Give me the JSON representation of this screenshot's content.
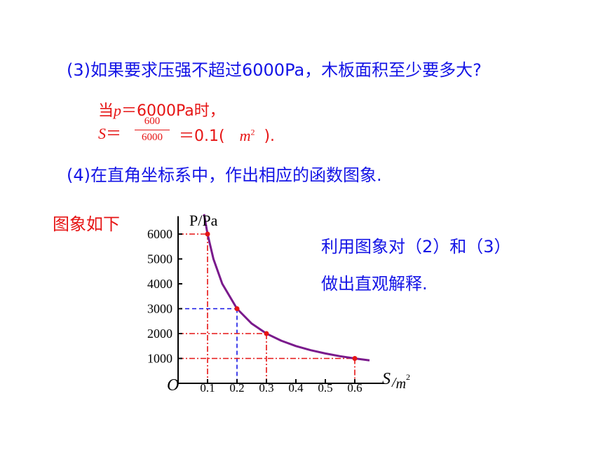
{
  "question3": "(3)如果要求压强不超过6000Pa，木板面积至少要多大?",
  "answer": {
    "line1_prefix": "当",
    "line1_var": "p",
    "line1_rest": "＝6000Pa时，",
    "line2_var": "S",
    "line2_eq": "＝",
    "numerator": "600",
    "denominator": "6000",
    "result": "＝0.1(",
    "unit": "m",
    "unit_exp": "2",
    "close": ")."
  },
  "question4": "(4)在直角坐标系中，作出相应的函数图象.",
  "graph_caption": "图象如下",
  "note_line1": "利用图象对（2）和（3）",
  "note_line2": "做出直观解释.",
  "colors": {
    "blue": "#1414e6",
    "red": "#e61414",
    "curve": "#7a1a8c"
  },
  "chart_data": {
    "type": "line",
    "ylabel": "P/Pa",
    "xlabel_var": "S",
    "xlabel_unit": "m",
    "xlabel_exp": "2",
    "origin_label": "O",
    "xlim": [
      0,
      0.7
    ],
    "ylim": [
      0,
      7000
    ],
    "y_ticks": [
      1000,
      2000,
      3000,
      4000,
      5000,
      6000
    ],
    "x_ticks": [
      0.1,
      0.2,
      0.3,
      0.4,
      0.5,
      0.6
    ],
    "x_tick_labels": [
      "0.1",
      "0.2",
      "0.3",
      "0.4",
      "0.5",
      "0.6"
    ],
    "y_tick_labels": [
      "1000",
      "2000",
      "3000",
      "4000",
      "5000",
      "6000"
    ],
    "curve": {
      "s": [
        0.088,
        0.1,
        0.12,
        0.15,
        0.2,
        0.25,
        0.3,
        0.35,
        0.4,
        0.45,
        0.5,
        0.55,
        0.6,
        0.65
      ],
      "p": [
        6800,
        6000,
        5000,
        4000,
        3000,
        2400,
        2000,
        1715,
        1500,
        1333,
        1200,
        1090,
        1000,
        923
      ]
    },
    "points": [
      {
        "s": 0.1,
        "p": 6000,
        "color": "red"
      },
      {
        "s": 0.2,
        "p": 3000,
        "color": "red"
      },
      {
        "s": 0.3,
        "p": 2000,
        "color": "red"
      },
      {
        "s": 0.6,
        "p": 1000,
        "color": "red"
      }
    ],
    "guides": [
      {
        "s": 0.1,
        "p": 6000,
        "color": "red"
      },
      {
        "s": 0.2,
        "p": 3000,
        "color": "blue"
      },
      {
        "s": 0.3,
        "p": 2000,
        "color": "red"
      },
      {
        "s": 0.6,
        "p": 1000,
        "color": "red"
      }
    ]
  }
}
